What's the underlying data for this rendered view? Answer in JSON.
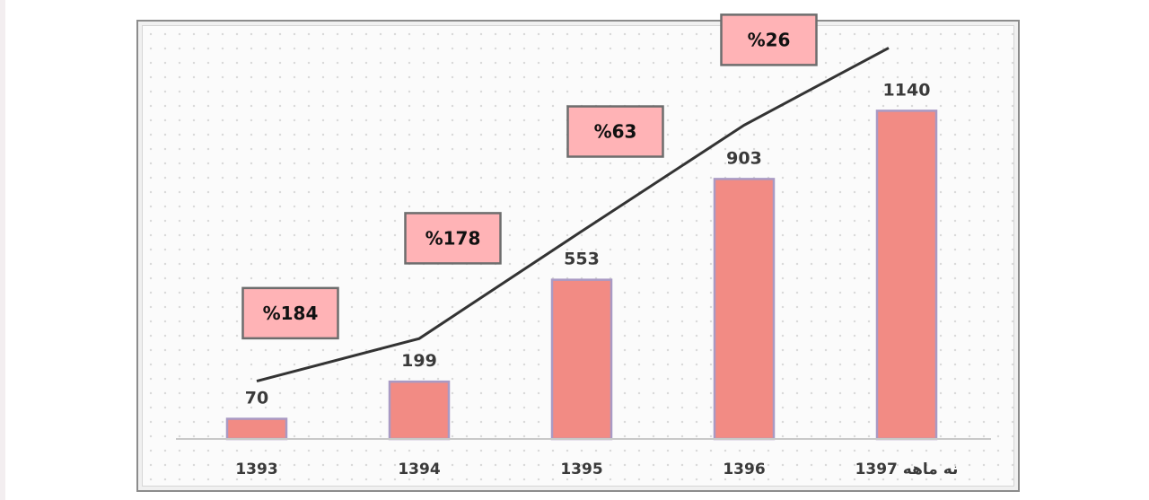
{
  "chart_data": {
    "type": "bar",
    "categories": [
      "1393",
      "1394",
      "1395",
      "1396",
      "نه ماهه 1397"
    ],
    "values": [
      70,
      199,
      553,
      903,
      1140
    ],
    "data_labels": [
      "70",
      "199",
      "553",
      "903",
      "1140"
    ],
    "growth_labels": [
      "%184",
      "%178",
      "%63",
      "%26"
    ],
    "ylim": [
      0,
      1400
    ],
    "grid": false,
    "legend": "none",
    "bar_color": "#f28b84",
    "bar_border_color": "#a99ac4",
    "trend_line_color": "#333333",
    "growth_box_color": "#ffb3b6"
  }
}
